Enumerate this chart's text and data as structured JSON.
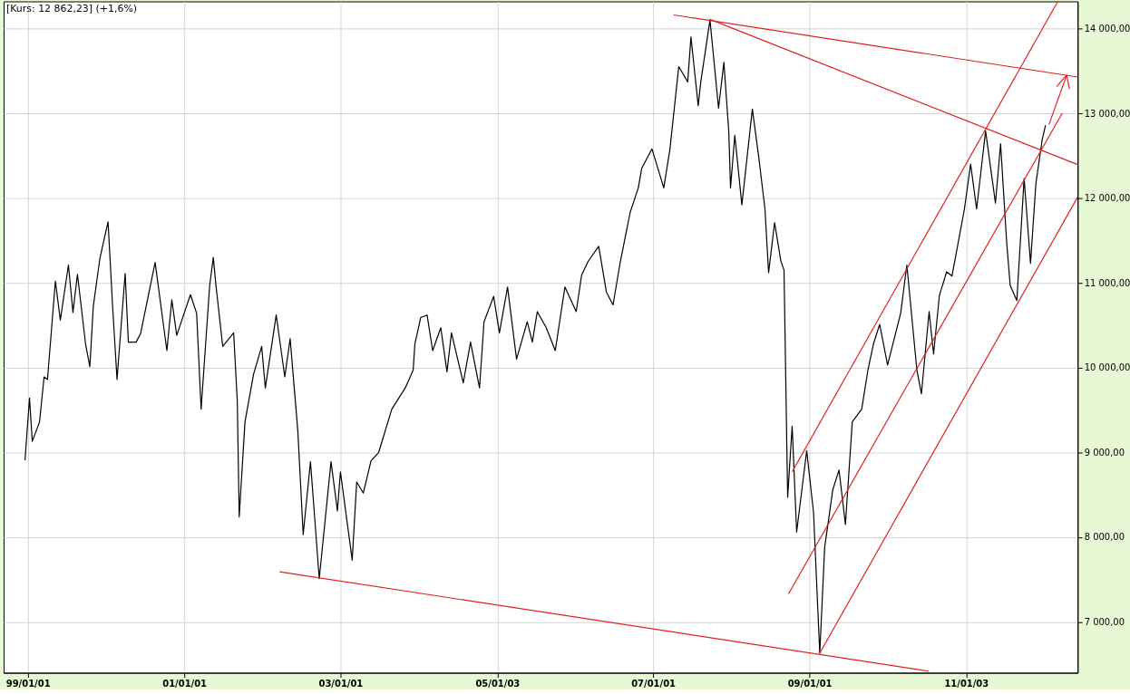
{
  "chart_data": {
    "type": "line",
    "title": "[Kurs: 12 862,23] (+1,6%)",
    "xlim": [
      "1998-09-10",
      "2012-06-07"
    ],
    "ylim": [
      6400,
      14320
    ],
    "xticks": [
      {
        "value": "1999-01-01",
        "label": "99/01/01"
      },
      {
        "value": "2001-01-01",
        "label": "01/01/01"
      },
      {
        "value": "2003-01-01",
        "label": "03/01/01"
      },
      {
        "value": "2005-01-03",
        "label": "05/01/03"
      },
      {
        "value": "2007-01-01",
        "label": "07/01/01"
      },
      {
        "value": "2009-01-01",
        "label": "09/01/01"
      },
      {
        "value": "2011-01-03",
        "label": "11/01/03"
      }
    ],
    "yticks": [
      {
        "value": 7000,
        "label": "7 000,00"
      },
      {
        "value": 8000,
        "label": "8 000,00"
      },
      {
        "value": 9000,
        "label": "9 000,00"
      },
      {
        "value": 10000,
        "label": "10 000,00"
      },
      {
        "value": 11000,
        "label": "11 000,00"
      },
      {
        "value": 12000,
        "label": "12 000,00"
      },
      {
        "value": 13000,
        "label": "13 000,00"
      },
      {
        "value": 14000,
        "label": "14 000,00"
      }
    ],
    "grid": true,
    "series": [
      {
        "color": "#000000",
        "x": [
          "1998-12-19",
          "1999-01-09",
          "1999-01-22",
          "1999-02-25",
          "1999-03-18",
          "1999-04-03",
          "1999-05-10",
          "1999-06-02",
          "1999-07-10",
          "1999-07-31",
          "1999-08-21",
          "1999-09-28",
          "1999-10-18",
          "1999-11-03",
          "1999-12-04",
          "2000-01-11",
          "2000-02-01",
          "2000-02-22",
          "2000-03-31",
          "2000-04-15",
          "2000-05-21",
          "2000-06-11",
          "2000-08-18",
          "2000-10-12",
          "2000-11-04",
          "2000-11-27",
          "2001-01-30",
          "2001-02-28",
          "2001-03-21",
          "2001-04-30",
          "2001-05-17",
          "2001-05-28",
          "2001-06-30",
          "2001-08-20",
          "2001-09-06",
          "2001-09-15",
          "2001-10-12",
          "2001-11-21",
          "2001-12-29",
          "2002-01-15",
          "2002-03-07",
          "2002-04-16",
          "2002-05-11",
          "2002-06-16",
          "2002-07-11",
          "2002-08-14",
          "2002-09-24",
          "2002-11-18",
          "2002-12-18",
          "2003-01-01",
          "2003-02-25",
          "2003-03-18",
          "2003-04-18",
          "2003-05-24",
          "2003-06-29",
          "2003-08-29",
          "2003-10-31",
          "2003-12-07",
          "2003-12-15",
          "2004-01-11",
          "2004-02-10",
          "2004-03-07",
          "2004-04-14",
          "2004-05-13",
          "2004-06-03",
          "2004-07-28",
          "2004-08-31",
          "2004-10-12",
          "2004-11-02",
          "2004-12-17",
          "2005-01-13",
          "2005-02-20",
          "2005-04-03",
          "2005-05-23",
          "2005-06-16",
          "2005-07-09",
          "2005-08-20",
          "2005-10-01",
          "2005-11-15",
          "2006-01-07",
          "2006-02-01",
          "2006-03-03",
          "2006-04-22",
          "2006-05-28",
          "2006-06-28",
          "2006-08-01",
          "2006-09-16",
          "2006-10-24",
          "2006-11-09",
          "2006-12-27",
          "2007-02-20",
          "2007-03-21",
          "2007-05-01",
          "2007-06-12",
          "2007-06-27",
          "2007-07-31",
          "2007-08-12",
          "2007-09-24",
          "2007-11-03",
          "2007-11-28",
          "2007-12-21",
          "2007-12-29",
          "2008-01-18",
          "2008-02-20",
          "2008-04-09",
          "2008-05-09",
          "2008-06-07",
          "2008-06-24",
          "2008-07-22",
          "2008-08-20",
          "2008-09-04",
          "2008-09-21",
          "2008-10-12",
          "2008-11-02",
          "2008-12-19",
          "2009-01-20",
          "2009-02-18",
          "2009-03-13",
          "2009-04-20",
          "2009-05-19",
          "2009-06-18",
          "2009-07-20",
          "2009-09-02",
          "2009-10-01",
          "2009-10-27",
          "2009-11-25",
          "2010-01-01",
          "2010-03-03",
          "2010-04-01",
          "2010-05-18",
          "2010-06-08",
          "2010-07-14",
          "2010-08-04",
          "2010-08-31",
          "2010-10-04",
          "2010-10-29",
          "2010-12-26",
          "2011-01-24",
          "2011-02-21",
          "2011-04-04",
          "2011-05-20",
          "2011-06-13",
          "2011-07-12",
          "2011-07-28",
          "2011-08-28",
          "2011-10-01",
          "2011-10-31",
          "2011-11-25",
          "2011-12-24",
          "2012-01-09"
        ],
        "values": [
          8906,
          9640,
          9130,
          9360,
          9890,
          9860,
          11020,
          10560,
          11210,
          10650,
          11100,
          10280,
          10010,
          10720,
          11290,
          11720,
          10740,
          9860,
          11110,
          10300,
          10300,
          10400,
          11240,
          10200,
          10800,
          10380,
          10860,
          10640,
          9510,
          10970,
          11300,
          11000,
          10250,
          10410,
          9610,
          8240,
          9360,
          9920,
          10250,
          9760,
          10620,
          9890,
          10340,
          9250,
          8030,
          8890,
          7510,
          8890,
          8310,
          8770,
          7730,
          8650,
          8520,
          8900,
          9000,
          9510,
          9760,
          9970,
          10280,
          10590,
          10620,
          10200,
          10470,
          9950,
          10410,
          9820,
          10300,
          9760,
          10540,
          10840,
          10410,
          10950,
          10100,
          10540,
          10300,
          10660,
          10470,
          10200,
          10950,
          10660,
          11090,
          11250,
          11430,
          10890,
          10740,
          11250,
          11830,
          12120,
          12350,
          12580,
          12120,
          12580,
          13550,
          13370,
          13900,
          13090,
          13370,
          14100,
          13060,
          13600,
          12780,
          12120,
          12740,
          11920,
          13050,
          12480,
          11870,
          11120,
          11710,
          11260,
          11150,
          8470,
          9310,
          8060,
          9020,
          8290,
          6630,
          7880,
          8560,
          8790,
          8150,
          9360,
          9510,
          9970,
          10280,
          10510,
          10030,
          10640,
          11210,
          9970,
          9690,
          10660,
          10160,
          10850,
          11130,
          11080,
          11870,
          12400,
          11870,
          12790,
          11940,
          12640,
          11460,
          10970,
          10790,
          12230,
          11230,
          12170,
          12680,
          12860
        ]
      },
      {
        "color": "#e02020",
        "x": [
          "2002-03-23",
          "2010-07-11"
        ],
        "values": [
          7591,
          6419
        ]
      },
      {
        "color": "#e02020",
        "x": [
          "2007-04-07",
          "2012-06-07"
        ],
        "values": [
          14160,
          13428
        ]
      },
      {
        "color": "#e02020",
        "x": [
          "2007-09-24",
          "2012-06-07"
        ],
        "values": [
          14108,
          12395
        ]
      },
      {
        "color": "#e02020",
        "x": [
          "2008-10-12",
          "2012-03-06"
        ],
        "values": [
          8770,
          14317
        ]
      },
      {
        "color": "#e02020",
        "x": [
          "2008-09-25",
          "2012-03-27"
        ],
        "values": [
          7330,
          13000
        ]
      },
      {
        "color": "#e02020",
        "x": [
          "2009-02-18",
          "2012-06-07"
        ],
        "values": [
          6630,
          12010
        ]
      },
      {
        "color": "#e02020",
        "x": [
          "2012-01-25",
          "2012-04-17",
          "2012-03-03",
          "2012-04-17",
          "2012-04-30"
        ],
        "values": [
          12865,
          13450,
          13320,
          13450,
          13285
        ]
      }
    ]
  }
}
